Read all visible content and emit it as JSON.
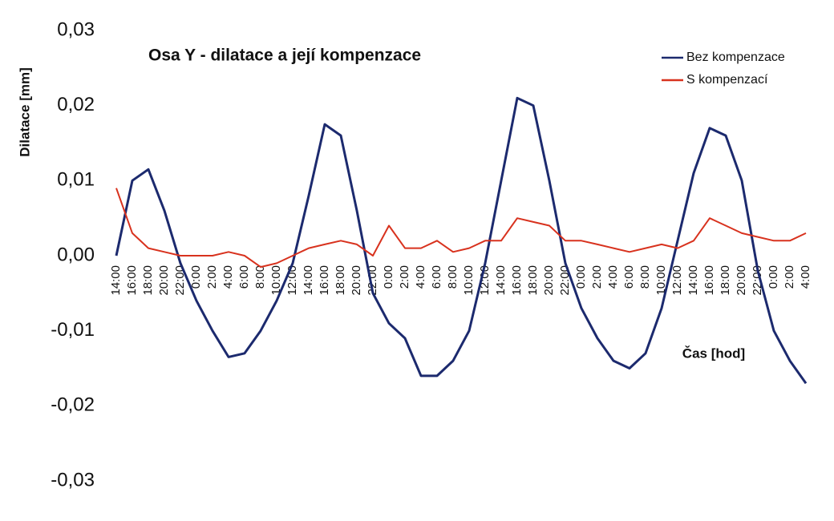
{
  "chart_data": {
    "type": "line",
    "title": "Osa Y - dilatace a její kompenzace",
    "y_label": "Dilatace [mm]",
    "x_label": "Čas [hod]",
    "categories": [
      "14:00",
      "16:00",
      "18:00",
      "20:00",
      "22:00",
      "0:00",
      "2:00",
      "4:00",
      "6:00",
      "8:00",
      "10:00",
      "12:00",
      "14:00",
      "16:00",
      "18:00",
      "20:00",
      "22:00",
      "0:00",
      "2:00",
      "4:00",
      "6:00",
      "8:00",
      "10:00",
      "12:00",
      "14:00",
      "16:00",
      "18:00",
      "20:00",
      "22:00",
      "0:00",
      "2:00",
      "4:00",
      "6:00",
      "8:00",
      "10:00",
      "12:00",
      "14:00",
      "16:00",
      "18:00",
      "20:00",
      "22:00",
      "0:00",
      "2:00",
      "4:00"
    ],
    "series": [
      {
        "name": "Bez kompenzace",
        "color": "#1c2a6e",
        "values": [
          0.0,
          0.01,
          0.0115,
          0.006,
          -0.001,
          -0.006,
          -0.01,
          -0.0135,
          -0.013,
          -0.01,
          -0.006,
          -0.001,
          0.008,
          0.0175,
          0.016,
          0.006,
          -0.005,
          -0.009,
          -0.011,
          -0.016,
          -0.016,
          -0.014,
          -0.01,
          -0.001,
          0.01,
          0.021,
          0.02,
          0.01,
          -0.001,
          -0.007,
          -0.011,
          -0.014,
          -0.015,
          -0.013,
          -0.007,
          0.002,
          0.011,
          0.017,
          0.016,
          0.01,
          -0.002,
          -0.01,
          -0.014,
          -0.017
        ]
      },
      {
        "name": "S kompenzací",
        "color": "#d8321e",
        "values": [
          0.009,
          0.003,
          0.001,
          0.0005,
          0.0,
          0.0,
          0.0,
          0.0005,
          0.0,
          -0.0015,
          -0.001,
          0.0,
          0.001,
          0.0015,
          0.002,
          0.0015,
          0.0,
          0.004,
          0.001,
          0.001,
          0.002,
          0.0005,
          0.001,
          0.002,
          0.002,
          0.005,
          0.0045,
          0.004,
          0.002,
          0.002,
          0.0015,
          0.001,
          0.0005,
          0.001,
          0.0015,
          0.001,
          0.002,
          0.005,
          0.004,
          0.003,
          0.0025,
          0.002,
          0.002,
          0.003
        ]
      }
    ],
    "ylim": [
      -0.03,
      0.03
    ],
    "yticks": [
      {
        "value": -0.03,
        "label": "-0,03"
      },
      {
        "value": -0.02,
        "label": "-0,02"
      },
      {
        "value": -0.01,
        "label": "-0,01"
      },
      {
        "value": 0,
        "label": "0,00"
      },
      {
        "value": 0.01,
        "label": "0,01"
      },
      {
        "value": 0.02,
        "label": "0,02"
      },
      {
        "value": 0.03,
        "label": "0,03"
      }
    ],
    "grid": false,
    "legend": "top-right"
  }
}
